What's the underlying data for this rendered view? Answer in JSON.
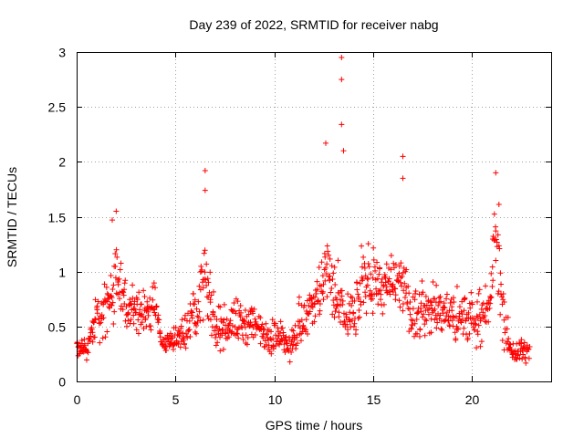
{
  "chart_data": {
    "type": "scatter",
    "title": "Day 239 of 2022, SRMTID for receiver nabg",
    "xlabel": "GPS time / hours",
    "ylabel": "SRMTID / TECUs",
    "xlim": [
      0,
      24
    ],
    "ylim": [
      0,
      3
    ],
    "xticks": [
      0,
      5,
      10,
      15,
      20
    ],
    "xtick_labels": [
      "0",
      "5",
      "10",
      "15",
      "20"
    ],
    "yticks": [
      0,
      0.5,
      1,
      1.5,
      2,
      2.5,
      3
    ],
    "ytick_labels": [
      "0",
      "0.5",
      "1",
      "1.5",
      "2",
      "2.5",
      "3"
    ],
    "grid": true,
    "marker": "+",
    "series": [
      {
        "name": "SRMTID",
        "color": "#ff0000",
        "x_range": [
          0,
          22.9
        ],
        "notable_points": [
          {
            "x": 13.4,
            "y": 2.95
          },
          {
            "x": 13.4,
            "y": 2.75
          },
          {
            "x": 13.4,
            "y": 2.34
          },
          {
            "x": 12.6,
            "y": 2.17
          },
          {
            "x": 13.5,
            "y": 2.1
          },
          {
            "x": 16.5,
            "y": 2.05
          },
          {
            "x": 6.5,
            "y": 1.92
          },
          {
            "x": 21.2,
            "y": 1.9
          },
          {
            "x": 16.5,
            "y": 1.85
          },
          {
            "x": 6.5,
            "y": 1.74
          },
          {
            "x": 2.0,
            "y": 1.55
          },
          {
            "x": 1.8,
            "y": 1.47
          }
        ],
        "envelope": [
          {
            "x": 0.0,
            "y": 0.3,
            "spread": 0.1
          },
          {
            "x": 0.5,
            "y": 0.28,
            "spread": 0.12
          },
          {
            "x": 1.0,
            "y": 0.55,
            "spread": 0.25
          },
          {
            "x": 1.6,
            "y": 0.7,
            "spread": 0.3
          },
          {
            "x": 2.0,
            "y": 0.95,
            "spread": 0.4
          },
          {
            "x": 2.5,
            "y": 0.7,
            "spread": 0.25
          },
          {
            "x": 3.0,
            "y": 0.6,
            "spread": 0.25
          },
          {
            "x": 3.5,
            "y": 0.65,
            "spread": 0.25
          },
          {
            "x": 4.0,
            "y": 0.7,
            "spread": 0.25
          },
          {
            "x": 4.3,
            "y": 0.35,
            "spread": 0.12
          },
          {
            "x": 5.0,
            "y": 0.38,
            "spread": 0.15
          },
          {
            "x": 5.5,
            "y": 0.45,
            "spread": 0.2
          },
          {
            "x": 6.0,
            "y": 0.65,
            "spread": 0.3
          },
          {
            "x": 6.5,
            "y": 0.95,
            "spread": 0.4
          },
          {
            "x": 7.0,
            "y": 0.45,
            "spread": 0.2
          },
          {
            "x": 8.0,
            "y": 0.55,
            "spread": 0.25
          },
          {
            "x": 9.0,
            "y": 0.5,
            "spread": 0.25
          },
          {
            "x": 10.0,
            "y": 0.4,
            "spread": 0.2
          },
          {
            "x": 10.8,
            "y": 0.35,
            "spread": 0.18
          },
          {
            "x": 11.5,
            "y": 0.55,
            "spread": 0.25
          },
          {
            "x": 12.0,
            "y": 0.7,
            "spread": 0.3
          },
          {
            "x": 12.7,
            "y": 1.0,
            "spread": 0.45
          },
          {
            "x": 13.3,
            "y": 0.65,
            "spread": 0.35
          },
          {
            "x": 14.0,
            "y": 0.6,
            "spread": 0.3
          },
          {
            "x": 14.7,
            "y": 0.95,
            "spread": 0.35
          },
          {
            "x": 15.5,
            "y": 0.85,
            "spread": 0.3
          },
          {
            "x": 16.5,
            "y": 0.85,
            "spread": 0.35
          },
          {
            "x": 17.0,
            "y": 0.6,
            "spread": 0.3
          },
          {
            "x": 18.0,
            "y": 0.65,
            "spread": 0.3
          },
          {
            "x": 19.0,
            "y": 0.6,
            "spread": 0.3
          },
          {
            "x": 20.0,
            "y": 0.55,
            "spread": 0.25
          },
          {
            "x": 20.8,
            "y": 0.6,
            "spread": 0.25
          },
          {
            "x": 21.2,
            "y": 1.35,
            "spread": 0.5
          },
          {
            "x": 21.6,
            "y": 0.55,
            "spread": 0.3
          },
          {
            "x": 22.0,
            "y": 0.25,
            "spread": 0.12
          },
          {
            "x": 22.5,
            "y": 0.28,
            "spread": 0.15
          },
          {
            "x": 22.9,
            "y": 0.25,
            "spread": 0.1
          }
        ]
      }
    ]
  }
}
